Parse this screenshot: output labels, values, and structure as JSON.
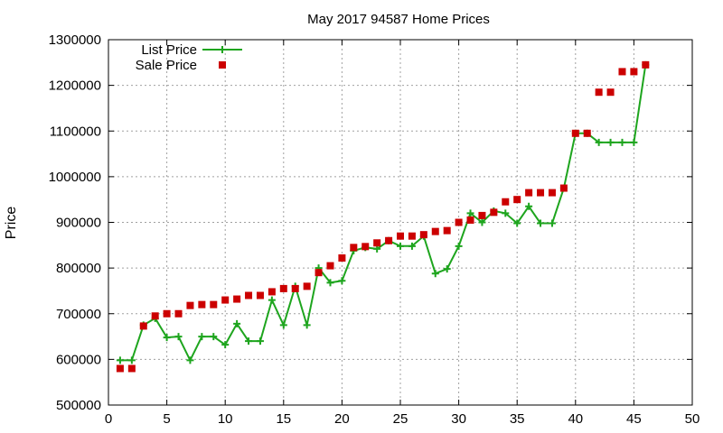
{
  "chart_data": {
    "type": "line",
    "title": "May 2017 94587 Home Prices",
    "xlabel": "",
    "ylabel": "Price",
    "xlim": [
      0,
      50
    ],
    "ylim": [
      500000,
      1300000
    ],
    "x_ticks": [
      0,
      5,
      10,
      15,
      20,
      25,
      30,
      35,
      40,
      45,
      50
    ],
    "y_ticks": [
      500000,
      600000,
      700000,
      800000,
      900000,
      1000000,
      1100000,
      1200000,
      1300000
    ],
    "grid": true,
    "legend_position": "top-left",
    "x": [
      1,
      2,
      3,
      4,
      5,
      6,
      7,
      8,
      9,
      10,
      11,
      12,
      13,
      14,
      15,
      16,
      17,
      18,
      19,
      20,
      21,
      22,
      23,
      24,
      25,
      26,
      27,
      28,
      29,
      30,
      31,
      32,
      33,
      34,
      35,
      36,
      37,
      38,
      39,
      40,
      41,
      42,
      43,
      44,
      45,
      46
    ],
    "series": [
      {
        "name": "List Price",
        "style": "linespoints",
        "color": "#1ea51e",
        "values": [
          598000,
          598000,
          675000,
          690000,
          648000,
          650000,
          598000,
          650000,
          650000,
          632000,
          678000,
          640000,
          640000,
          730000,
          675000,
          760000,
          675000,
          800000,
          768000,
          772000,
          838000,
          845000,
          842000,
          860000,
          848000,
          848000,
          870000,
          788000,
          798000,
          848000,
          920000,
          900000,
          925000,
          920000,
          898000,
          935000,
          898000,
          898000,
          975000,
          1095000,
          1095000,
          1075000,
          1075000,
          1075000,
          1075000,
          1245000
        ]
      },
      {
        "name": "Sale Price",
        "style": "points",
        "color": "#cc0000",
        "values": [
          580000,
          580000,
          673000,
          695000,
          700000,
          700000,
          718000,
          720000,
          720000,
          730000,
          732000,
          740000,
          740000,
          748000,
          755000,
          755000,
          760000,
          790000,
          805000,
          822000,
          845000,
          847000,
          855000,
          860000,
          870000,
          870000,
          873000,
          880000,
          882000,
          900000,
          905000,
          915000,
          922000,
          945000,
          950000,
          965000,
          965000,
          965000,
          975000,
          1095000,
          1095000,
          1185000,
          1185000,
          1230000,
          1230000,
          1245000
        ]
      }
    ]
  }
}
